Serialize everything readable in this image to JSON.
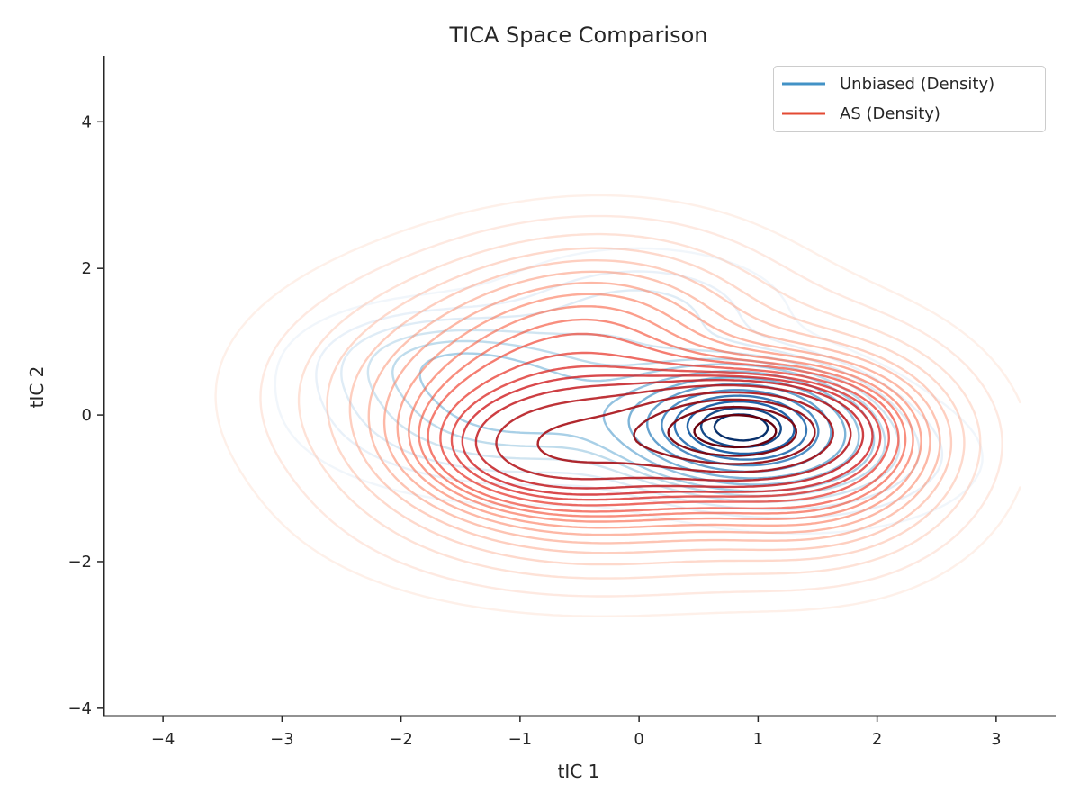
{
  "chart_data": {
    "type": "contour",
    "title": "TICA Space Comparison",
    "xlabel": "tIC 1",
    "ylabel": "tIC 2",
    "xlim": [
      -4.5,
      3.5
    ],
    "ylim": [
      -4.1,
      4.9
    ],
    "xticks": [
      -4,
      -3,
      -2,
      -1,
      0,
      1,
      2,
      3
    ],
    "yticks": [
      -4,
      -2,
      0,
      2,
      4
    ],
    "xtick_labels": [
      "−4",
      "−3",
      "−2",
      "−1",
      "0",
      "1",
      "2",
      "3"
    ],
    "ytick_labels": [
      "−4",
      "−2",
      "0",
      "2",
      "4"
    ],
    "grid": false,
    "legend_position": "top-right",
    "series": [
      {
        "name": "Unbiased (Density)",
        "color": "#4292c6",
        "colormap": "Blues",
        "density_peaks": [
          {
            "x": 0.85,
            "y": -0.15,
            "sx": 0.55,
            "sy": 0.45,
            "w": 1.0
          },
          {
            "x": -1.0,
            "y": 0.1,
            "sx": 0.9,
            "sy": 0.6,
            "w": 0.25
          },
          {
            "x": -1.7,
            "y": 0.8,
            "sx": 0.6,
            "sy": 0.4,
            "w": 0.12
          },
          {
            "x": 0.0,
            "y": 1.4,
            "sx": 0.7,
            "sy": 0.5,
            "w": 0.1
          },
          {
            "x": 1.5,
            "y": -0.6,
            "sx": 0.7,
            "sy": 0.5,
            "w": 0.15
          }
        ],
        "levels": [
          0.02,
          0.05,
          0.08,
          0.12,
          0.16,
          0.2,
          0.27,
          0.35,
          0.45,
          0.55,
          0.65,
          0.75,
          0.85,
          0.93
        ]
      },
      {
        "name": "AS (Density)",
        "color": "#e34a33",
        "colormap": "Reds",
        "density_peaks": [
          {
            "x": 0.85,
            "y": -0.2,
            "sx": 0.5,
            "sy": 0.35,
            "w": 1.0
          },
          {
            "x": 0.2,
            "y": -0.3,
            "sx": 1.0,
            "sy": 0.6,
            "w": 0.55
          },
          {
            "x": -0.8,
            "y": -0.5,
            "sx": 0.6,
            "sy": 0.45,
            "w": 0.3
          },
          {
            "x": -1.2,
            "y": 0.3,
            "sx": 1.1,
            "sy": 1.0,
            "w": 0.25
          },
          {
            "x": -0.2,
            "y": 1.3,
            "sx": 0.9,
            "sy": 0.8,
            "w": 0.2
          },
          {
            "x": 1.6,
            "y": -0.4,
            "sx": 0.7,
            "sy": 0.9,
            "w": 0.35
          },
          {
            "x": -0.3,
            "y": -1.4,
            "sx": 1.2,
            "sy": 0.7,
            "w": 0.15
          }
        ],
        "levels": [
          0.015,
          0.03,
          0.05,
          0.07,
          0.09,
          0.11,
          0.13,
          0.15,
          0.17,
          0.19,
          0.21,
          0.24,
          0.27,
          0.3,
          0.34,
          0.4,
          0.5,
          0.62,
          0.75,
          0.88
        ]
      }
    ]
  }
}
